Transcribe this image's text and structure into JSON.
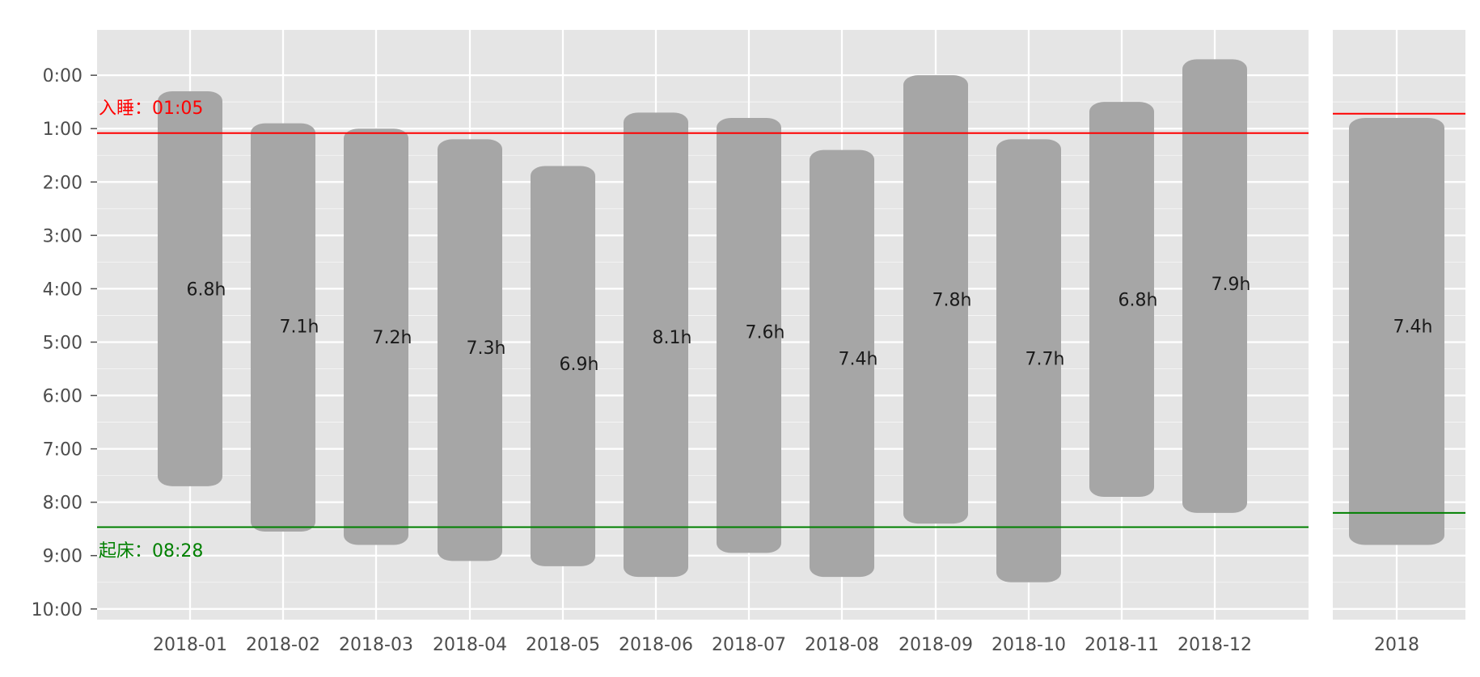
{
  "chart_data": [
    {
      "type": "floating-bar",
      "title": "",
      "xlabel": "",
      "ylabel": "",
      "y_axis_inverted": true,
      "ylim_hours": [
        -0.85,
        10.2
      ],
      "y_ticks_hours": [
        0,
        1,
        2,
        3,
        4,
        5,
        6,
        7,
        8,
        9,
        10
      ],
      "y_tick_labels": [
        "0:00",
        "1:00",
        "2:00",
        "3:00",
        "4:00",
        "5:00",
        "6:00",
        "7:00",
        "8:00",
        "9:00",
        "10:00"
      ],
      "grid": true,
      "categories": [
        "2018-01",
        "2018-02",
        "2018-03",
        "2018-04",
        "2018-05",
        "2018-06",
        "2018-07",
        "2018-08",
        "2018-09",
        "2018-10",
        "2018-11",
        "2018-12"
      ],
      "start_hours": [
        0.3,
        0.9,
        1.0,
        1.2,
        1.7,
        0.7,
        0.8,
        1.4,
        0.0,
        1.2,
        0.5,
        -0.3
      ],
      "end_hours": [
        7.7,
        8.55,
        8.8,
        9.1,
        9.2,
        9.4,
        8.95,
        9.4,
        8.4,
        9.5,
        7.9,
        8.2
      ],
      "bar_labels": [
        "6.8h",
        "7.1h",
        "7.2h",
        "7.3h",
        "6.9h",
        "8.1h",
        "7.6h",
        "7.4h",
        "7.8h",
        "7.7h",
        "6.8h",
        "7.9h"
      ],
      "bar_label_hours": [
        4.0,
        4.7,
        4.9,
        5.1,
        5.4,
        4.9,
        4.8,
        5.3,
        4.2,
        5.3,
        4.2,
        3.9
      ],
      "bar_color": "#a6a6a6",
      "reference_lines": [
        {
          "label": "入睡：01:05",
          "value_hours": 1.0833,
          "color": "#ff0000",
          "label_hours": 0.6
        },
        {
          "label": "起床：08:28",
          "value_hours": 8.4667,
          "color": "#008000",
          "label_hours": 8.9
        }
      ]
    },
    {
      "type": "floating-bar",
      "title": "",
      "y_axis_inverted": true,
      "ylim_hours": [
        -0.85,
        10.2
      ],
      "grid": true,
      "categories": [
        "2018"
      ],
      "start_hours": [
        0.8
      ],
      "end_hours": [
        8.8
      ],
      "bar_labels": [
        "7.4h"
      ],
      "bar_label_hours": [
        4.7
      ],
      "bar_color": "#a6a6a6",
      "reference_lines": [
        {
          "value_hours": 0.72,
          "color": "#ff0000"
        },
        {
          "value_hours": 8.2,
          "color": "#008000"
        }
      ]
    }
  ],
  "colors": {
    "panel_bg": "#e5e5e5",
    "grid": "#ffffff",
    "tick_text": "#4d4d4d",
    "bar_text": "#1a1a1a"
  }
}
